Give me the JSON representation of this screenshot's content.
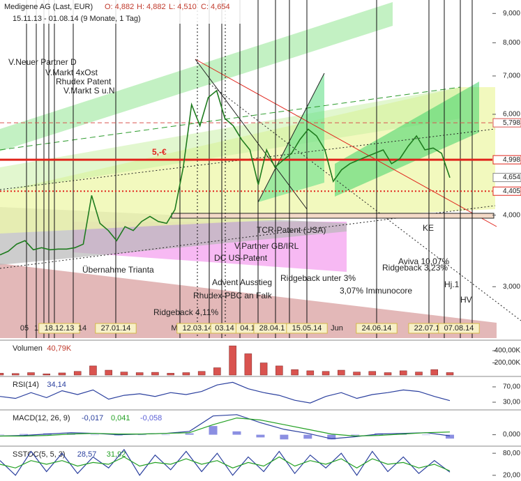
{
  "header": {
    "title": "Medigene AG (Last, EUR)",
    "open": "O: 4,882",
    "high": "H: 4,882",
    "low": "L: 4,510",
    "close": "C: 4,654",
    "range": "15.11.13 - 01.08.14 (9 Monate, 1 Tag)"
  },
  "chart_data": [
    {
      "type": "line",
      "log": true,
      "ylim": [
        2.44,
        9.5
      ],
      "yticks": [
        {
          "value": 9,
          "label": "9,000"
        },
        {
          "value": 8,
          "label": "8,000"
        },
        {
          "value": 7,
          "label": "7,000"
        },
        {
          "value": 6,
          "label": "6,000"
        },
        {
          "value": 4,
          "label": "4,000"
        },
        {
          "value": 3,
          "label": "3,000"
        }
      ],
      "series": [
        {
          "color": "#1e7b1e",
          "values": [
            3.41,
            3.46,
            3.56,
            3.61,
            3.48,
            3.51,
            3.48,
            3.49,
            3.49,
            3.51,
            3.56,
            4.33,
            3.87,
            3.76,
            3.61,
            3.82,
            3.76,
            3.9,
            3.98,
            3.9,
            3.87,
            4.09,
            4.85,
            6.24,
            5.73,
            6.42,
            6.6,
            5.9,
            5.73,
            5.42,
            5.2,
            4.52,
            5.2,
            4.85,
            4.99,
            5.13,
            5.42,
            5.65,
            5.5,
            5.2,
            4.58,
            4.8,
            4.92,
            4.99,
            5.06,
            5.13,
            5.2,
            4.92,
            5.02,
            5.28,
            5.5,
            5.2,
            5.24,
            5.13,
            4.65
          ]
        }
      ],
      "levels": [
        {
          "value": 5.798,
          "label": "5,798",
          "color": "#d9534f",
          "dash": "6,4",
          "width": 1
        },
        {
          "value": 4.998,
          "label": "4,998",
          "color": "#e0241b",
          "dash": "none",
          "width": 3
        },
        {
          "value": 4.654,
          "label": "4,654",
          "color": "#888888",
          "dash": "none",
          "width": 0
        },
        {
          "value": 4.405,
          "label": "4,405",
          "color": "#e0241b",
          "dash": "2,3",
          "width": 2
        }
      ],
      "xlabels": [
        "05",
        "1",
        "18.12.13",
        "14",
        "27.01.14",
        "M",
        "12.03.14",
        "03.14",
        "04.1",
        "28.04.1",
        "15.05.14",
        "Jun",
        "24.06.14",
        "22.07.1",
        "07.08.14"
      ],
      "annotations": [
        "V.Neuer Partner D",
        "V.Markt 4xOst",
        "Rhudex Patent",
        "V.Markt S u.N",
        "5,-€",
        "TCR-Patent (USA)",
        "V.Partner GB/IRL",
        "DC US-Patent",
        "Übernahme Trianta",
        "Advent Ausstieg",
        "Rhudex-PBC an Falk",
        "Ridgeback 4,11%",
        "Ridgeback unter 3%",
        "3,07% Immunocore",
        "Aviva 10,07%",
        "Ridgeback 3,23%",
        "KE",
        "Hj.1",
        "HV"
      ]
    },
    {
      "type": "bar",
      "title": "Volumen",
      "legend_values": [
        "40,79K"
      ],
      "color": "#d9534f",
      "ylim": [
        0,
        550000
      ],
      "yticks": [
        {
          "value": 400000,
          "label": "400,00K"
        },
        {
          "value": 200000,
          "label": "200,00K"
        }
      ],
      "values": [
        30000,
        25000,
        40000,
        20000,
        35000,
        60000,
        150000,
        80000,
        50000,
        40000,
        45000,
        30000,
        40000,
        60000,
        120000,
        480000,
        350000,
        200000,
        150000,
        90000,
        70000,
        60000,
        80000,
        50000,
        60000,
        40000,
        70000,
        50000,
        90000,
        40790
      ]
    },
    {
      "type": "line",
      "title": "RSI(14)",
      "legend_values": [
        "34,14"
      ],
      "ylim": [
        13.6,
        93.6
      ],
      "yticks": [
        {
          "value": 70,
          "label": "70,00"
        },
        {
          "value": 30,
          "label": "30,00"
        }
      ],
      "series": [
        {
          "color": "#2a3f9e",
          "values": [
            45,
            40,
            55,
            42,
            60,
            50,
            62,
            38,
            48,
            52,
            45,
            55,
            50,
            58,
            75,
            82,
            65,
            55,
            48,
            35,
            28,
            45,
            55,
            40,
            50,
            55,
            62,
            58,
            45,
            34.14
          ]
        }
      ]
    },
    {
      "type": "line",
      "title": "MACD(12, 26, 9)",
      "legend_values": [
        "-0,017",
        "0,041",
        "-0,058"
      ],
      "ylim": [
        -0.15,
        0.35
      ],
      "yticks": [
        {
          "value": 0,
          "label": "0,000"
        }
      ],
      "histogram": [
        0,
        0.01,
        0.02,
        0.02,
        0,
        -0.01,
        0,
        0,
        0.02,
        0.13,
        0.05,
        -0.04,
        -0.07,
        -0.06,
        -0.07,
        -0.01,
        0.02,
        0.01,
        0,
        -0.058
      ],
      "histogram_color": "#5a5fd6",
      "series": [
        {
          "color": "#2a3f9e",
          "values": [
            -0.02,
            -0.01,
            0.01,
            0.03,
            0.02,
            0,
            0.01,
            0.02,
            0.05,
            0.28,
            0.3,
            0.18,
            0.08,
            0.02,
            -0.06,
            -0.03,
            0.01,
            0.02,
            0.03,
            -0.017
          ]
        },
        {
          "color": "#22a022",
          "values": [
            -0.02,
            -0.02,
            -0.01,
            0.01,
            0.02,
            0.01,
            0.01,
            0.02,
            0.03,
            0.15,
            0.25,
            0.22,
            0.15,
            0.08,
            0.01,
            -0.02,
            -0.01,
            0.01,
            0.03,
            0.041
          ]
        }
      ]
    },
    {
      "type": "line",
      "title": "SSTOC(5, 5, 3)",
      "legend_values": [
        "28,57",
        "31,92"
      ],
      "ylim": [
        4.5,
        95.5
      ],
      "yticks": [
        {
          "value": 80,
          "label": "80,00"
        },
        {
          "value": 20,
          "label": "20,00"
        }
      ],
      "series": [
        {
          "color": "#2a3f9e",
          "values": [
            60,
            20,
            85,
            30,
            80,
            25,
            70,
            40,
            90,
            20,
            75,
            35,
            85,
            30,
            80,
            20,
            70,
            30,
            85,
            25,
            75,
            40,
            80,
            20,
            85,
            30,
            70,
            25,
            60,
            28.57
          ]
        },
        {
          "color": "#22a022",
          "values": [
            50,
            40,
            60,
            50,
            60,
            45,
            55,
            50,
            70,
            45,
            55,
            50,
            65,
            50,
            60,
            40,
            55,
            45,
            70,
            45,
            60,
            50,
            65,
            40,
            65,
            50,
            55,
            40,
            50,
            31.92
          ]
        }
      ]
    }
  ]
}
